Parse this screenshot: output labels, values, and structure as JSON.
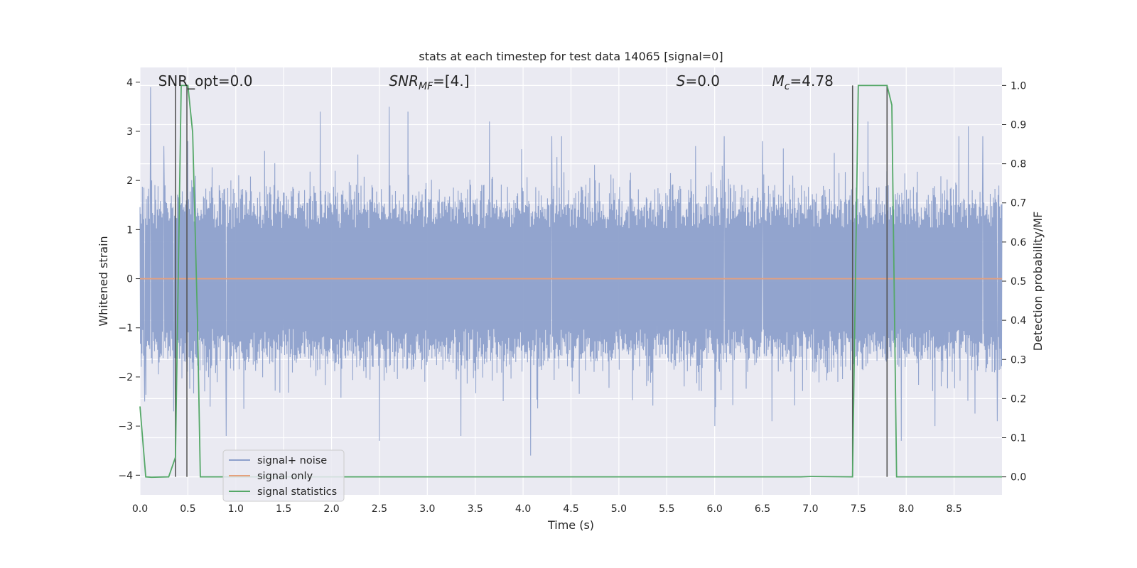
{
  "chart_data": {
    "type": "line",
    "title": "stats at each timestep for test data 14065 [signal=0]",
    "xlabel": "Time (s)",
    "ylabel": "Whitened strain",
    "y2label": "Detection probability/MF",
    "xlim": [
      0.0,
      9.0
    ],
    "ylim": [
      -4.4,
      4.3
    ],
    "y2lim": [
      -0.046,
      1.046
    ],
    "xticks": [
      "0.0",
      "0.5",
      "1.0",
      "1.5",
      "2.0",
      "2.5",
      "3.0",
      "3.5",
      "4.0",
      "4.5",
      "5.0",
      "5.5",
      "6.0",
      "6.5",
      "7.0",
      "7.5",
      "8.0",
      "8.5"
    ],
    "yticks": [
      "4",
      "3",
      "2",
      "1",
      "0",
      "−1",
      "−2",
      "−3",
      "−4"
    ],
    "y2ticks": [
      "1.0",
      "0.9",
      "0.8",
      "0.7",
      "0.6",
      "0.5",
      "0.4",
      "0.3",
      "0.2",
      "0.1",
      "0.0"
    ],
    "grid": true,
    "legend_position": "lower-left",
    "annotations": [
      {
        "text": "SNR_opt=0.0",
        "x": 0.19
      },
      {
        "text": "SNR",
        "sub": "MF",
        "suffix": "=[4.]",
        "x": 2.6
      },
      {
        "text": "S",
        "suffix": "=0.0",
        "x": 5.6
      },
      {
        "text": "M",
        "sub": "c",
        "suffix": "=4.78",
        "x": 6.6
      }
    ],
    "series": [
      {
        "name": "signal+ noise",
        "color": "#8da0cb",
        "axis": "left",
        "band": {
          "low": -1.6,
          "high": 1.6
        },
        "peaks": [
          {
            "x": 0.11,
            "y": 3.9
          },
          {
            "x": 0.25,
            "y": 2.7
          },
          {
            "x": 0.5,
            "y": 2.8
          },
          {
            "x": 0.95,
            "y": 2.0
          },
          {
            "x": 1.3,
            "y": 2.6
          },
          {
            "x": 1.88,
            "y": 3.4
          },
          {
            "x": 2.6,
            "y": 3.5
          },
          {
            "x": 2.8,
            "y": 3.4
          },
          {
            "x": 3.65,
            "y": 3.2
          },
          {
            "x": 4.3,
            "y": 2.9
          },
          {
            "x": 4.4,
            "y": 2.9
          },
          {
            "x": 5.8,
            "y": 2.7
          },
          {
            "x": 6.1,
            "y": 2.9
          },
          {
            "x": 6.5,
            "y": 2.8
          },
          {
            "x": 7.6,
            "y": 3.2
          },
          {
            "x": 8.55,
            "y": 2.9
          },
          {
            "x": 8.65,
            "y": 3.1
          },
          {
            "x": 8.8,
            "y": 2.9
          }
        ],
        "troughs": [
          {
            "x": 0.05,
            "y": -2.5
          },
          {
            "x": 0.35,
            "y": -2.7
          },
          {
            "x": 0.9,
            "y": -3.2
          },
          {
            "x": 2.5,
            "y": -3.3
          },
          {
            "x": 3.35,
            "y": -3.2
          },
          {
            "x": 4.08,
            "y": -3.6
          },
          {
            "x": 6.0,
            "y": -3.0
          },
          {
            "x": 6.6,
            "y": -2.9
          },
          {
            "x": 7.95,
            "y": -3.3
          },
          {
            "x": 8.3,
            "y": -3.0
          },
          {
            "x": 8.95,
            "y": -2.9
          }
        ]
      },
      {
        "name": "signal only",
        "color": "#e5a17d",
        "axis": "left",
        "x": [
          0.0,
          9.0
        ],
        "y": [
          0.0,
          0.0
        ]
      },
      {
        "name": "signal statistics",
        "color": "#55a868",
        "axis": "right",
        "x": [
          0.0,
          0.06,
          0.12,
          0.3,
          0.37,
          0.43,
          0.5,
          0.55,
          0.6,
          0.63,
          0.7,
          6.9,
          7.0,
          7.44,
          7.5,
          7.8,
          7.85,
          7.9,
          9.0
        ],
        "y": [
          0.18,
          0.0,
          -0.001,
          0.0,
          0.05,
          1.0,
          1.0,
          0.88,
          0.4,
          0.0,
          0.0,
          0.0,
          0.001,
          0.0,
          1.0,
          1.0,
          0.95,
          0.0,
          0.0
        ]
      }
    ],
    "markers": {
      "color": "#555555",
      "x": [
        0.37,
        0.49,
        7.44,
        7.8
      ]
    }
  }
}
